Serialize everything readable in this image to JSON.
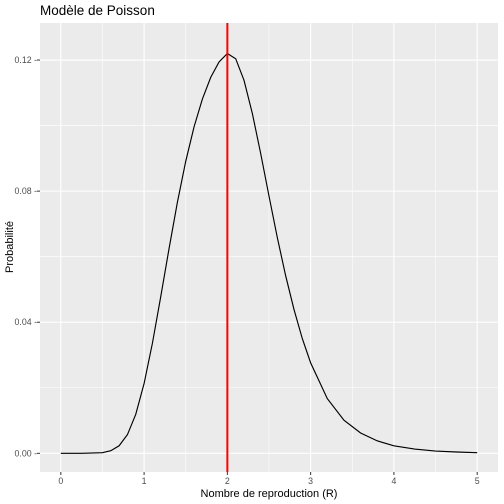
{
  "chart_data": {
    "type": "line",
    "title": "Modèle de Poisson",
    "xlabel": "Nombre de reproduction (R)",
    "ylabel": "Probabilité",
    "xlim": [
      -0.25,
      5.25
    ],
    "ylim": [
      -0.0057,
      0.1313
    ],
    "x_ticks": [
      0,
      1,
      2,
      3,
      4,
      5
    ],
    "x_tick_labels": [
      "0",
      "1",
      "2",
      "3",
      "4",
      "5"
    ],
    "y_ticks": [
      0.0,
      0.04,
      0.08,
      0.12
    ],
    "y_tick_labels": [
      "0.00 -",
      "0.04 -",
      "0.08 -",
      "0.12 -"
    ],
    "grid": true,
    "background": "#ebebeb",
    "grid_color": "#ffffff",
    "series": [
      {
        "color": "#000000",
        "x": [
          0,
          0.25,
          0.5,
          0.6,
          0.7,
          0.8,
          0.9,
          1.0,
          1.1,
          1.2,
          1.3,
          1.4,
          1.5,
          1.6,
          1.7,
          1.8,
          1.9,
          2.0,
          2.1,
          2.2,
          2.3,
          2.4,
          2.5,
          2.6,
          2.7,
          2.8,
          2.9,
          3.0,
          3.2,
          3.4,
          3.6,
          3.8,
          4.0,
          4.25,
          4.5,
          4.75,
          5.0
        ],
        "y": [
          0.0,
          0.0,
          0.0002,
          0.0008,
          0.0023,
          0.0057,
          0.0119,
          0.0213,
          0.0336,
          0.0478,
          0.0625,
          0.0766,
          0.0891,
          0.0996,
          0.1081,
          0.1147,
          0.1194,
          0.122,
          0.1204,
          0.1138,
          0.1037,
          0.0915,
          0.0785,
          0.0658,
          0.0542,
          0.0439,
          0.035,
          0.0276,
          0.0167,
          0.0101,
          0.0062,
          0.0038,
          0.0023,
          0.0013,
          0.0007,
          0.0004,
          0.0002
        ]
      }
    ],
    "vline": {
      "x": 2,
      "color": "#ff0000"
    }
  }
}
